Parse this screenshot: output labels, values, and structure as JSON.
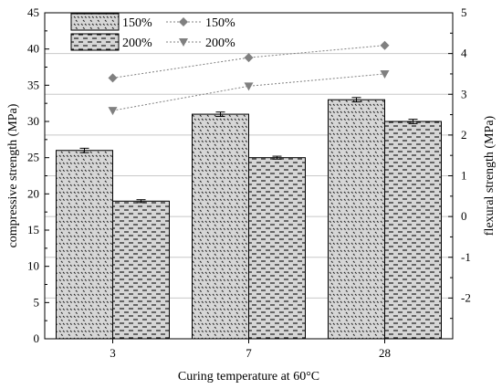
{
  "chart_data": {
    "type": "bar",
    "categories": [
      "3",
      "7",
      "28"
    ],
    "xlabel": "Curing temperature at 60°C",
    "ylabel": "compressive strength (MPa)",
    "y2label": "flexural strength (MPa)",
    "ylim": [
      0,
      45
    ],
    "y2lim": [
      -3,
      5
    ],
    "yticks": [
      0,
      5,
      10,
      15,
      20,
      25,
      30,
      35,
      40,
      45
    ],
    "y2ticks": [
      -2,
      -1,
      0,
      1,
      2,
      3,
      4,
      5
    ],
    "grid": true,
    "legend_position": "top-left",
    "bar_series": [
      {
        "name": "150%",
        "values": [
          26,
          31,
          33
        ],
        "errors": [
          0.3,
          0.3,
          0.3
        ],
        "pattern": "dots"
      },
      {
        "name": "200%",
        "values": [
          19,
          25,
          30
        ],
        "errors": [
          0.2,
          0.2,
          0.3
        ],
        "pattern": "dashes"
      }
    ],
    "line_series": [
      {
        "name": "150%",
        "values": [
          3.4,
          3.9,
          4.2
        ],
        "marker": "diamond",
        "color": "#808080"
      },
      {
        "name": "200%",
        "values": [
          2.6,
          3.2,
          3.5
        ],
        "marker": "triangle-down",
        "color": "#808080"
      }
    ]
  }
}
